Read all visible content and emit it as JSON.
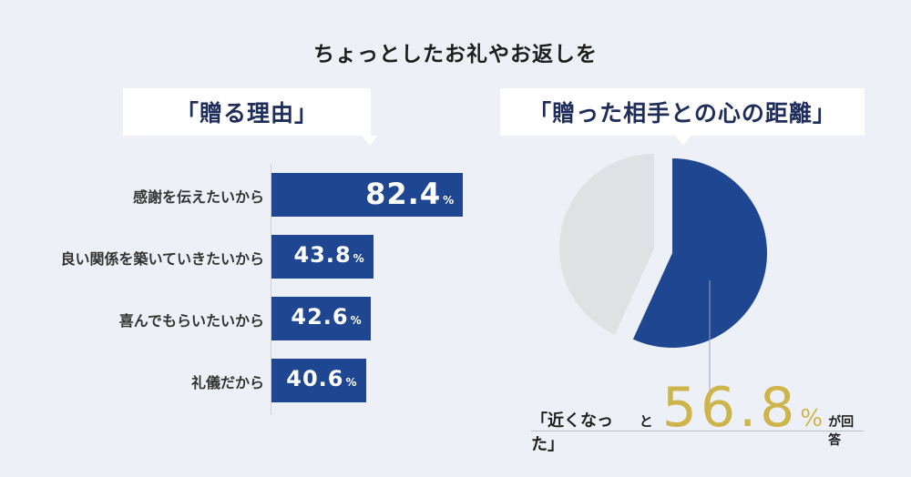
{
  "title": "ちょっとしたお礼やお返しを",
  "left_panel": {
    "heading": "「贈る理由」"
  },
  "right_panel": {
    "heading": "「贈った相手との心の距離」",
    "caption_quote": "「近くなった」",
    "caption_to": "と",
    "highlight_value": "56.8",
    "highlight_unit": "%",
    "caption_suffix": "が回答"
  },
  "chart_data": [
    {
      "type": "bar",
      "orientation": "horizontal",
      "title": "「贈る理由」",
      "categories": [
        "感謝を伝えたいから",
        "良い関係を築いていきたいから",
        "喜んでもらいたいから",
        "礼儀だから"
      ],
      "values": [
        82.4,
        43.8,
        42.6,
        40.6
      ],
      "value_labels": [
        "82.4",
        "43.8",
        "42.6",
        "40.6"
      ],
      "unit": "%",
      "xlim": [
        0,
        100
      ],
      "color": "#1f4690"
    },
    {
      "type": "pie",
      "title": "「贈った相手との心の距離」",
      "values": [
        56.8,
        43.2
      ],
      "colors": [
        "#1f4690",
        "#dfe1e5"
      ]
    }
  ]
}
